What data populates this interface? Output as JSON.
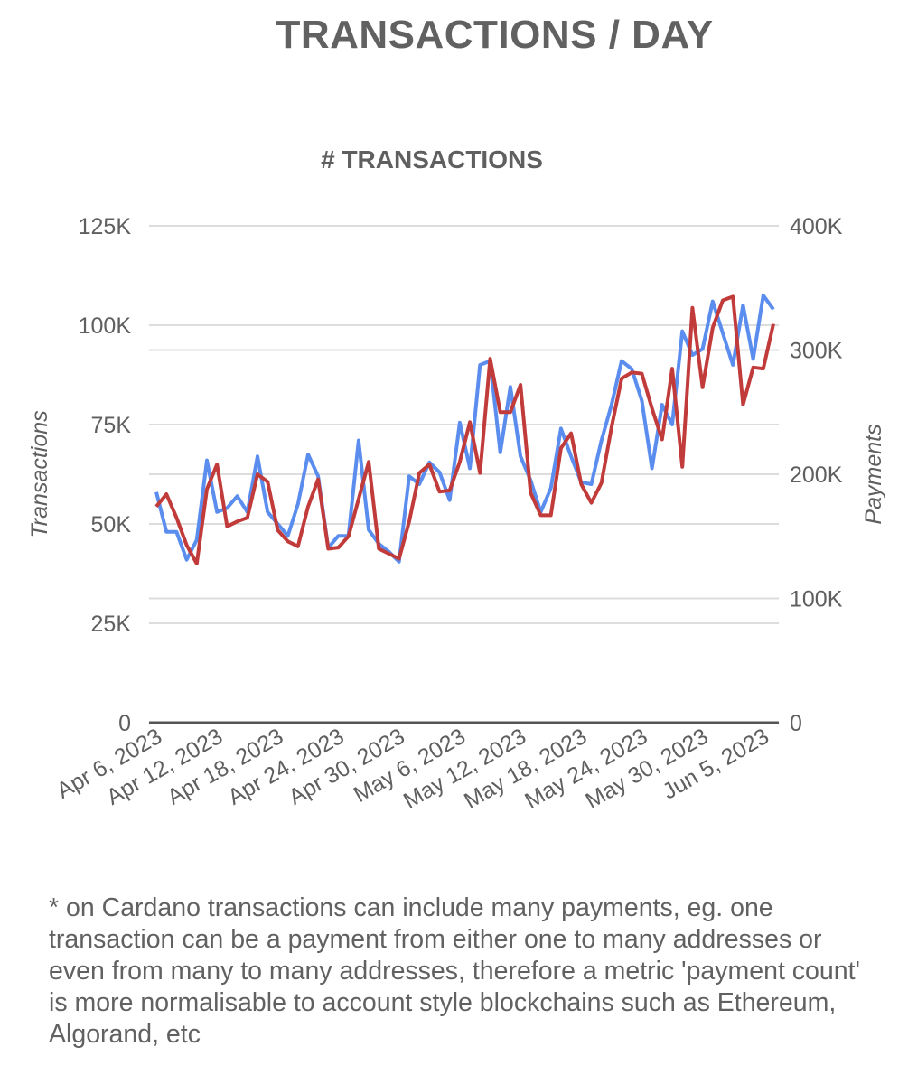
{
  "page": {
    "title": "TRANSACTIONS / DAY",
    "footnote": "* on Cardano transactions can include many payments, eg. one transaction can be a payment from either one to many addresses or even from many to many addresses, therefore a metric 'payment count' is more normalisable to account style blockchains such as Ethereum, Algorand, etc"
  },
  "chart_data": {
    "type": "line",
    "title": "# TRANSACTIONS",
    "x_start": "2023-04-06",
    "x_tick_labels": [
      "Apr 6, 2023",
      "Apr 12, 2023",
      "Apr 18, 2023",
      "Apr 24, 2023",
      "Apr 30, 2023",
      "May 6, 2023",
      "May 12, 2023",
      "May 18, 2023",
      "May 24, 2023",
      "May 30, 2023",
      "Jun 5, 2023"
    ],
    "y_left": {
      "label": "Transactions",
      "range": [
        0,
        125000
      ],
      "ticks": [
        0,
        25000,
        50000,
        75000,
        100000,
        125000
      ],
      "tick_labels": [
        "0",
        "25K",
        "50K",
        "75K",
        "100K",
        "125K"
      ]
    },
    "y_right": {
      "label": "Payments",
      "range": [
        0,
        400000
      ],
      "ticks": [
        0,
        100000,
        200000,
        300000,
        400000
      ],
      "tick_labels": [
        "0",
        "100K",
        "200K",
        "300K",
        "400K"
      ]
    },
    "grid": true,
    "legend": "none",
    "colors": {
      "transactions": "#5b8def",
      "payments": "#c23b3b",
      "grid": "#dddddd",
      "axis": "#555555",
      "text": "#5f5f5f"
    },
    "series": [
      {
        "axis": "left",
        "values": [
          58000,
          48000,
          48000,
          41000,
          46000,
          66000,
          53000,
          54000,
          57000,
          53000,
          67000,
          53000,
          50000,
          47000,
          55000,
          67500,
          62000,
          44000,
          47000,
          47000,
          71000,
          48500,
          45000,
          43000,
          40500,
          62000,
          60000,
          65500,
          63000,
          56000,
          75500,
          64000,
          90000,
          91000,
          68000,
          84500,
          67000,
          61000,
          53000,
          59000,
          74000,
          67000,
          60500,
          60000,
          71000,
          80000,
          91000,
          89000,
          81000,
          64000,
          80000,
          75000,
          98500,
          92500,
          94000,
          106000,
          98000,
          90000,
          105000,
          91500,
          107500,
          104000
        ]
      },
      {
        "axis": "right",
        "values": [
          174000,
          184000,
          165000,
          143000,
          128000,
          188000,
          208000,
          158000,
          162000,
          165000,
          200000,
          194000,
          155000,
          146000,
          142000,
          174000,
          196000,
          140000,
          141000,
          150000,
          180000,
          210000,
          140000,
          136000,
          132000,
          162000,
          201000,
          208000,
          186000,
          187000,
          210000,
          242000,
          201000,
          293000,
          250000,
          250000,
          272000,
          185000,
          167000,
          167000,
          221000,
          233000,
          192000,
          177000,
          193000,
          238000,
          277000,
          282000,
          281000,
          253000,
          228000,
          285000,
          206000,
          334000,
          270000,
          318000,
          340000,
          343000,
          256000,
          286000,
          285000,
          321000
        ]
      }
    ]
  }
}
